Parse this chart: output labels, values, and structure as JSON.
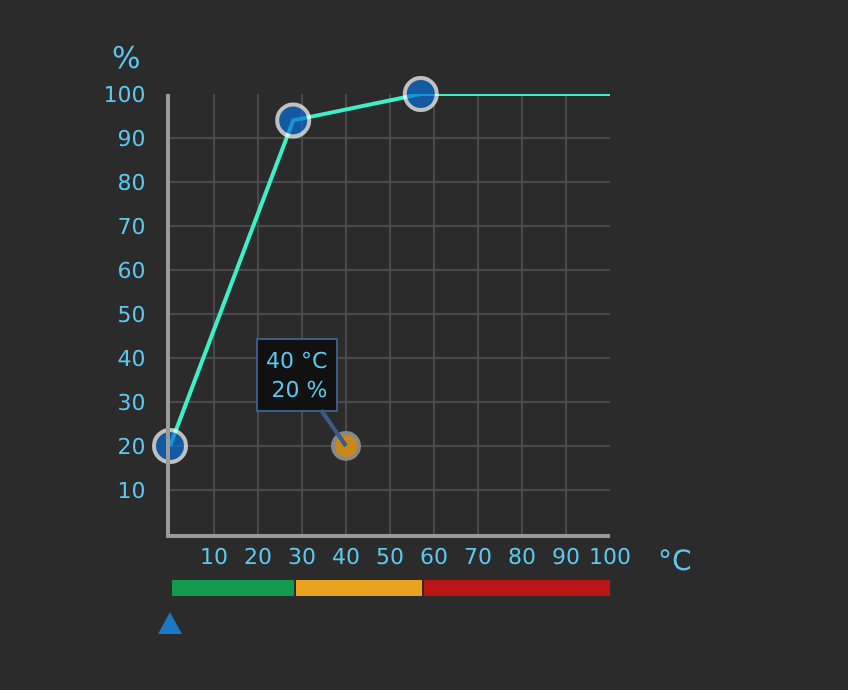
{
  "chart_data": {
    "type": "line",
    "ylabel": "%",
    "xlabel": "°C",
    "series": [
      {
        "color": "#3ef0c8",
        "x": [
          0,
          28,
          57,
          100
        ],
        "values": [
          20,
          94,
          100,
          100
        ]
      },
      {
        "type": "scatter",
        "color": "#c8891a",
        "x": [
          40
        ],
        "values": [
          20
        ]
      }
    ],
    "annotations": [
      {
        "text": "40 °C\n20 %",
        "x": 40,
        "y": 20
      }
    ],
    "xlim": [
      0,
      100
    ],
    "xticks": [
      10,
      20,
      30,
      40,
      50,
      60,
      70,
      80,
      90,
      100
    ],
    "ylim": [
      0,
      100
    ],
    "yticks": [
      10,
      20,
      30,
      40,
      50,
      60,
      70,
      80,
      90,
      100
    ],
    "grid": true,
    "marker": "circle",
    "line_style": "solid"
  }
}
